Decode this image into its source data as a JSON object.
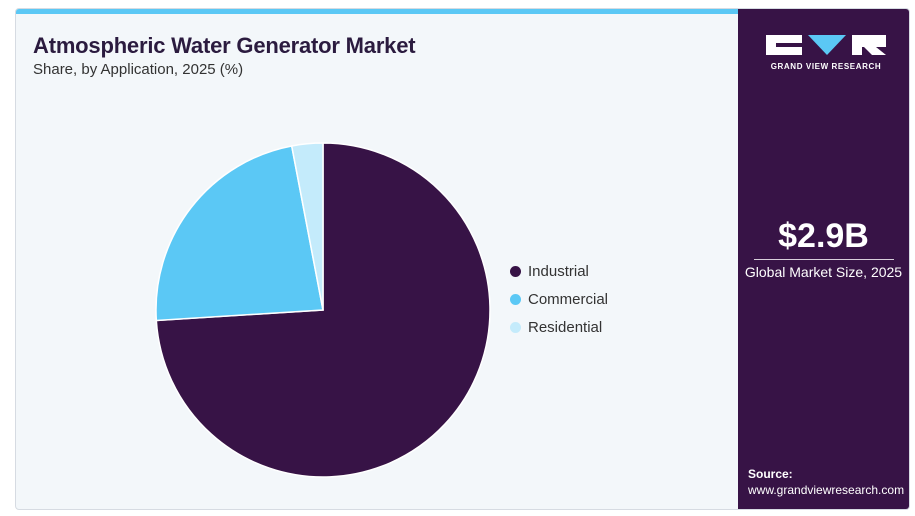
{
  "header": {
    "title": "Atmospheric Water Generator Market",
    "subtitle": "Share, by Application, 2025 (%)"
  },
  "chart_data": {
    "type": "pie",
    "categories": [
      "Industrial",
      "Commercial",
      "Residential"
    ],
    "values": [
      74,
      23,
      3
    ],
    "colors": [
      "#371346",
      "#5bc8f5",
      "#c4ebfb"
    ],
    "legend_position": "right",
    "start": "top, clockwise"
  },
  "sidebar": {
    "brand": "GRAND VIEW RESEARCH",
    "market_size_value": "$2.9B",
    "market_size_label": "Global Market Size, 2025",
    "source_label": "Source:",
    "source_url": "www.grandviewresearch.com",
    "background_color": "#371346"
  }
}
